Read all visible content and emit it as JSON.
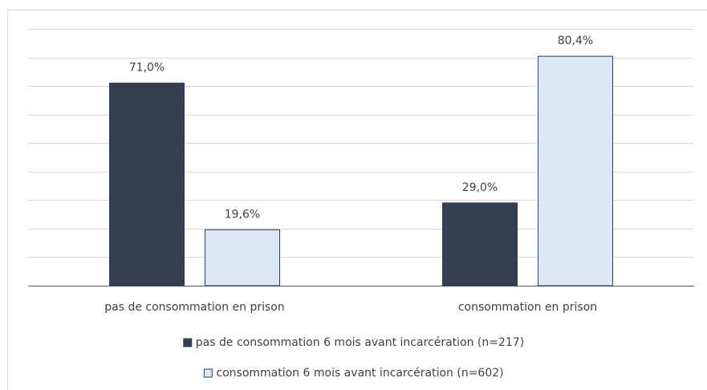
{
  "chart_data": {
    "type": "bar",
    "categories": [
      "pas de consommation en prison",
      "consommation en prison"
    ],
    "series": [
      {
        "name": "pas de consommation 6 mois avant incarcération (n=217)",
        "color": "#333f50",
        "values": [
          71.0,
          29.0
        ],
        "value_labels": [
          "71,0%",
          "29,0%"
        ]
      },
      {
        "name": "consommation 6 mois avant incarcération (n=602)",
        "color": "#dde8f5",
        "values": [
          19.6,
          80.4
        ],
        "value_labels": [
          "19,6%",
          "80,4%"
        ]
      }
    ],
    "ylim": [
      0,
      90
    ],
    "yticks": [
      0,
      10,
      20,
      30,
      40,
      50,
      60,
      70,
      80,
      90
    ],
    "grid": true,
    "legend": "bottom"
  }
}
